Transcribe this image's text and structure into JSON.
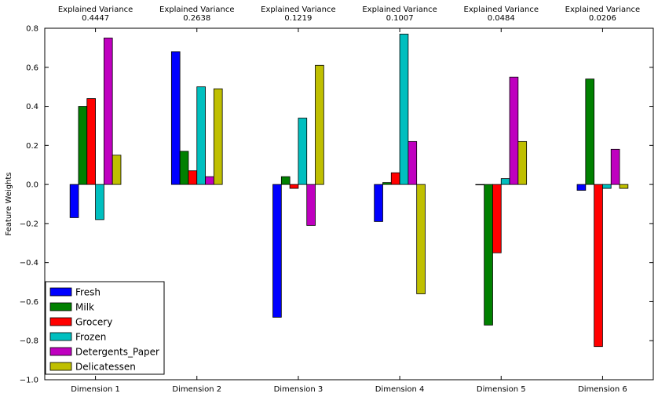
{
  "chart_data": {
    "type": "bar",
    "ylabel": "Feature Weights",
    "ylim": [
      -1.0,
      0.8
    ],
    "yticks": [
      "0.8",
      "0.6",
      "0.4",
      "0.2",
      "0.0",
      "−0.2",
      "−0.4",
      "−0.6",
      "−0.8",
      "−1.0"
    ],
    "ytick_values": [
      0.8,
      0.6,
      0.4,
      0.2,
      0.0,
      -0.2,
      -0.4,
      -0.6,
      -0.8,
      -1.0
    ],
    "categories": [
      "Dimension 1",
      "Dimension 2",
      "Dimension 3",
      "Dimension 4",
      "Dimension 5",
      "Dimension 6"
    ],
    "variance_label": "Explained Variance",
    "explained_variance": [
      "0.4447",
      "0.2638",
      "0.1219",
      "0.1007",
      "0.0484",
      "0.0206"
    ],
    "legend_position": "lower-left",
    "grid": false,
    "series": [
      {
        "name": "Fresh",
        "color": "#0000ff",
        "values": [
          -0.17,
          0.68,
          -0.68,
          -0.19,
          0.0,
          -0.03
        ]
      },
      {
        "name": "Milk",
        "color": "#008000",
        "values": [
          0.4,
          0.17,
          0.04,
          0.01,
          -0.72,
          0.54
        ]
      },
      {
        "name": "Grocery",
        "color": "#ff0000",
        "values": [
          0.44,
          0.07,
          -0.02,
          0.06,
          -0.35,
          -0.83
        ]
      },
      {
        "name": "Frozen",
        "color": "#00bfbf",
        "values": [
          -0.18,
          0.5,
          0.34,
          0.77,
          0.03,
          -0.02
        ]
      },
      {
        "name": "Detergents_Paper",
        "color": "#bf00bf",
        "values": [
          0.75,
          0.04,
          -0.21,
          0.22,
          0.55,
          0.18
        ]
      },
      {
        "name": "Delicatessen",
        "color": "#bfbf00",
        "values": [
          0.15,
          0.49,
          0.61,
          -0.56,
          0.22,
          -0.02
        ]
      }
    ]
  }
}
